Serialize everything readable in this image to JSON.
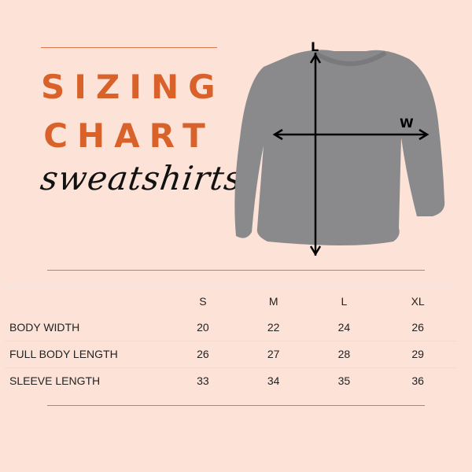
{
  "title": {
    "line1": "SIZING",
    "line2": "CHART",
    "script": "sweatshirts"
  },
  "diagram": {
    "length_label": "L",
    "width_label": "W",
    "shirt_color": "#8a8a8c"
  },
  "colors": {
    "background": "#fde2d8",
    "accent": "#d9622b"
  },
  "table": {
    "headers": [
      "",
      "S",
      "M",
      "L",
      "XL"
    ],
    "rows": [
      {
        "label": "BODY WIDTH",
        "values": [
          "20",
          "22",
          "24",
          "26"
        ]
      },
      {
        "label": "FULL BODY LENGTH",
        "values": [
          "26",
          "27",
          "28",
          "29"
        ]
      },
      {
        "label": "SLEEVE LENGTH",
        "values": [
          "33",
          "34",
          "35",
          "36"
        ]
      }
    ]
  }
}
